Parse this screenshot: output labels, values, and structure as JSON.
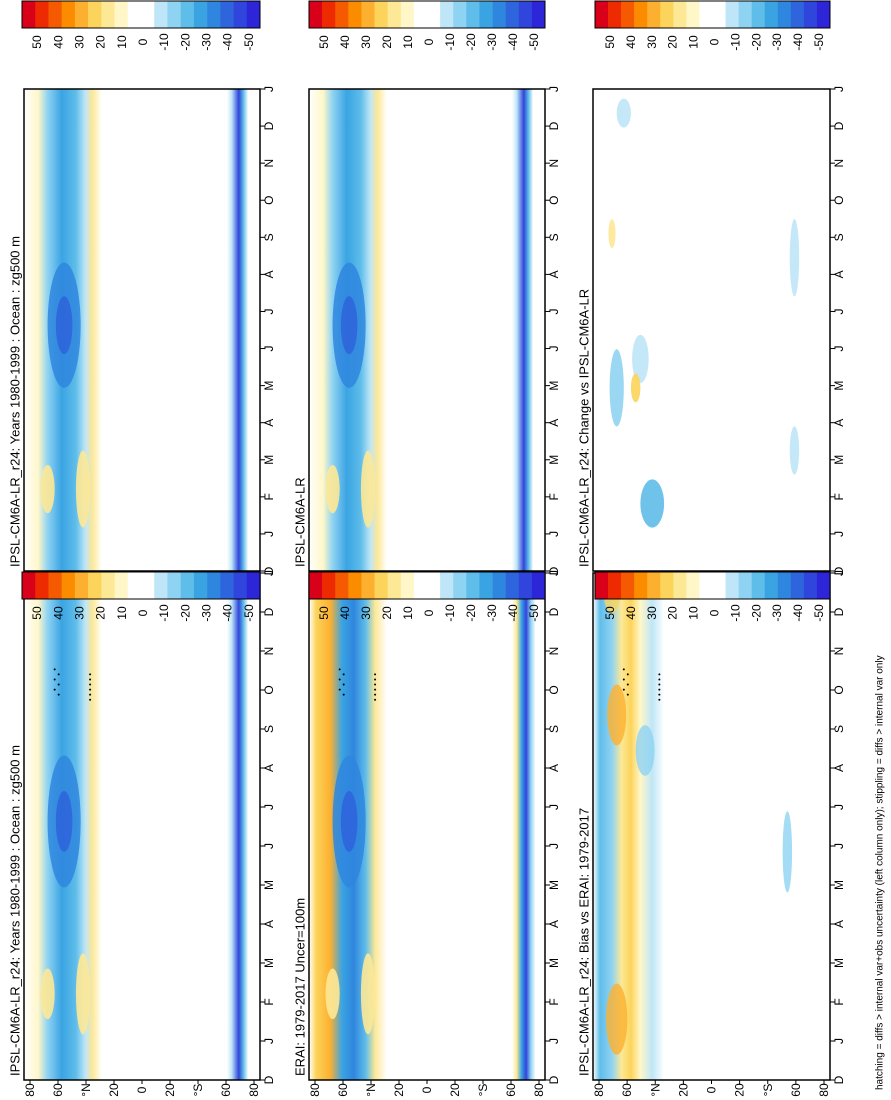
{
  "footnote": "hatching = diffs > internal var+obs uncertainty (left column only); stippling = diffs > internal var only",
  "colorbar": {
    "ticks": [
      "50",
      "40",
      "30",
      "20",
      "10",
      "0",
      "-10",
      "-20",
      "-30",
      "-40",
      "-50"
    ],
    "colors": [
      "#d9001a",
      "#ee2a00",
      "#f55a00",
      "#fb8c00",
      "#fdb030",
      "#fcd45b",
      "#fde896",
      "#fff7c8",
      "#ffffff",
      "#ffffff",
      "#bfe6f8",
      "#8fd3f2",
      "#5fbde9",
      "#3aa4e3",
      "#2f86de",
      "#2f65dc",
      "#2f45db",
      "#2d25d8"
    ]
  },
  "axes": {
    "months": [
      "D",
      "J",
      "F",
      "M",
      "A",
      "M",
      "J",
      "J",
      "A",
      "S",
      "O",
      "N",
      "D",
      "J"
    ],
    "lat_ticks": [
      "80",
      "60",
      "°N",
      "20",
      "0",
      "20",
      "°S",
      "60",
      "80"
    ]
  },
  "chart_data": [
    {
      "type": "heatmap",
      "title": "IPSL-CM6A-LR_r24: Years 1980-1999 : Ocean : zg500 m",
      "variant": "model",
      "stipple": true
    },
    {
      "type": "heatmap",
      "title": "IPSL-CM6A-LR_r24: Years 1980-1999 : Ocean : zg500 m",
      "variant": "model",
      "stipple": false
    },
    {
      "type": "heatmap",
      "title": "ERAI: 1979-2017 Uncer=100m",
      "variant": "obs",
      "stipple": true
    },
    {
      "type": "heatmap",
      "title": "IPSL-CM6A-LR",
      "variant": "model",
      "stipple": false
    },
    {
      "type": "heatmap",
      "title": "IPSL-CM6A-LR_r24: Bias vs ERAI: 1979-2017",
      "variant": "bias",
      "stipple": true
    },
    {
      "type": "heatmap",
      "title": "IPSL-CM6A-LR_r24: Change vs IPSL-CM6A-LR",
      "variant": "change",
      "stipple": false
    }
  ]
}
